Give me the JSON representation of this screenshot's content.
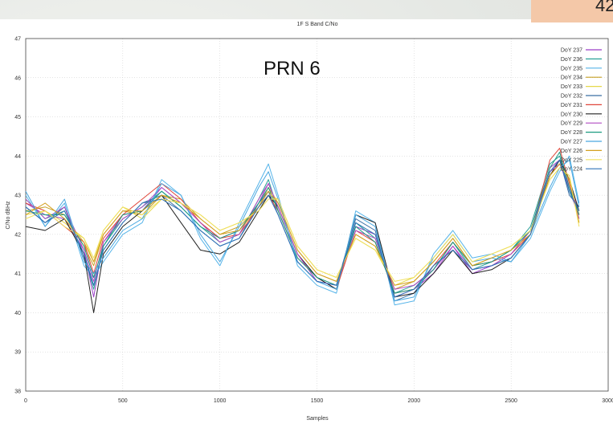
{
  "slide": {
    "badge_text": "42"
  },
  "annotation": {
    "text": "PRN 6"
  },
  "chart_data": {
    "type": "line",
    "title": "1F S Band C/No",
    "xlabel": "Samples",
    "ylabel": "C/No dBHz",
    "xlim": [
      0,
      3000
    ],
    "ylim": [
      38,
      47
    ],
    "xticks": [
      "0",
      "500",
      "1000",
      "1500",
      "2000",
      "2500",
      "3000"
    ],
    "yticks": [
      "38",
      "39",
      "40",
      "41",
      "42",
      "43",
      "44",
      "45",
      "46",
      "47"
    ],
    "grid": true,
    "legend_position": "top-right",
    "x": [
      0,
      100,
      200,
      300,
      350,
      400,
      500,
      600,
      700,
      800,
      900,
      1000,
      1100,
      1200,
      1250,
      1300,
      1400,
      1500,
      1600,
      1700,
      1800,
      1900,
      2000,
      2100,
      2200,
      2300,
      2400,
      2500,
      2600,
      2700,
      2750,
      2800,
      2850
    ],
    "series": [
      {
        "name": "DoY 237",
        "color": "#9b3fc8",
        "values": [
          42.8,
          42.5,
          42.4,
          41.6,
          40.4,
          41.8,
          42.5,
          42.6,
          43.2,
          42.8,
          42.3,
          41.9,
          42.1,
          42.8,
          43.3,
          42.7,
          41.5,
          40.8,
          40.7,
          42.2,
          42.0,
          40.4,
          40.6,
          41.0,
          41.7,
          41.0,
          41.2,
          41.5,
          42.1,
          43.7,
          43.9,
          43.2,
          42.6
        ]
      },
      {
        "name": "DoY 236",
        "color": "#2aa198",
        "values": [
          42.9,
          42.4,
          42.6,
          41.5,
          40.6,
          41.7,
          42.4,
          42.7,
          43.1,
          42.7,
          42.2,
          41.8,
          42.0,
          42.9,
          43.4,
          42.6,
          41.4,
          40.9,
          40.6,
          42.3,
          41.9,
          40.5,
          40.7,
          41.1,
          41.8,
          41.1,
          41.3,
          41.6,
          42.2,
          43.8,
          44.0,
          43.1,
          42.5
        ]
      },
      {
        "name": "DoY 235",
        "color": "#56b4e9",
        "values": [
          43.0,
          42.2,
          42.8,
          41.2,
          40.9,
          41.3,
          42.0,
          42.3,
          43.4,
          43.0,
          41.9,
          41.2,
          42.3,
          43.3,
          43.8,
          43.0,
          41.2,
          40.7,
          40.5,
          42.6,
          42.3,
          40.2,
          40.3,
          41.5,
          42.1,
          41.4,
          41.5,
          41.3,
          41.9,
          43.1,
          43.6,
          44.0,
          42.8
        ]
      },
      {
        "name": "DoY 234",
        "color": "#c9a227",
        "values": [
          42.6,
          42.7,
          42.5,
          41.7,
          41.2,
          42.0,
          42.6,
          42.5,
          43.0,
          42.9,
          42.4,
          42.0,
          42.2,
          42.7,
          43.2,
          42.8,
          41.6,
          41.0,
          40.8,
          42.0,
          41.7,
          40.6,
          40.8,
          41.3,
          41.9,
          41.2,
          41.4,
          41.6,
          42.0,
          43.5,
          43.8,
          43.4,
          42.4
        ]
      },
      {
        "name": "DoY 233",
        "color": "#e6d84a",
        "values": [
          42.5,
          42.6,
          42.3,
          41.9,
          41.3,
          42.1,
          42.7,
          42.4,
          42.9,
          42.8,
          42.5,
          42.1,
          42.3,
          42.6,
          43.0,
          42.9,
          41.7,
          41.1,
          40.9,
          41.9,
          41.6,
          40.7,
          40.9,
          41.4,
          42.0,
          41.3,
          41.5,
          41.7,
          42.1,
          43.4,
          43.7,
          43.5,
          42.3
        ]
      },
      {
        "name": "DoY 232",
        "color": "#3b6fa5",
        "values": [
          42.7,
          42.3,
          42.7,
          41.4,
          40.7,
          41.6,
          42.3,
          42.8,
          43.0,
          42.6,
          42.1,
          41.7,
          41.9,
          42.8,
          43.1,
          42.5,
          41.3,
          40.8,
          40.7,
          42.4,
          42.1,
          40.3,
          40.5,
          41.2,
          41.6,
          41.1,
          41.2,
          41.4,
          42.0,
          43.6,
          43.9,
          43.0,
          42.7
        ]
      },
      {
        "name": "DoY 231",
        "color": "#e0453a",
        "values": [
          42.8,
          42.6,
          42.2,
          41.8,
          41.0,
          41.9,
          42.5,
          42.9,
          43.3,
          42.9,
          42.3,
          41.9,
          42.0,
          42.7,
          43.0,
          42.6,
          41.4,
          40.9,
          40.6,
          42.1,
          41.8,
          40.5,
          40.6,
          41.2,
          41.8,
          41.2,
          41.3,
          41.5,
          42.0,
          43.9,
          44.2,
          43.3,
          42.5
        ]
      },
      {
        "name": "DoY 230",
        "color": "#222222",
        "values": [
          42.2,
          42.1,
          42.4,
          41.5,
          40.0,
          41.5,
          42.2,
          42.6,
          43.0,
          42.3,
          41.6,
          41.5,
          41.8,
          42.6,
          43.0,
          42.7,
          41.5,
          40.9,
          40.6,
          42.5,
          42.3,
          40.4,
          40.5,
          41.0,
          41.6,
          41.0,
          41.1,
          41.4,
          42.0,
          43.5,
          43.9,
          43.4,
          42.6
        ]
      },
      {
        "name": "DoY 229",
        "color": "#b04cc2",
        "values": [
          42.9,
          42.4,
          42.7,
          41.6,
          40.8,
          41.8,
          42.4,
          42.7,
          43.2,
          42.8,
          42.3,
          41.8,
          42.0,
          42.9,
          43.3,
          42.7,
          41.5,
          40.8,
          40.7,
          42.1,
          41.9,
          40.6,
          40.7,
          41.1,
          41.7,
          41.1,
          41.2,
          41.5,
          42.1,
          43.6,
          43.8,
          43.2,
          42.4
        ]
      },
      {
        "name": "DoY 228",
        "color": "#1a9a80",
        "values": [
          42.6,
          42.5,
          42.5,
          41.7,
          40.9,
          41.7,
          42.5,
          42.6,
          43.1,
          42.7,
          42.2,
          41.9,
          42.1,
          42.8,
          43.2,
          42.6,
          41.4,
          40.9,
          40.7,
          42.2,
          41.8,
          40.5,
          40.6,
          41.1,
          41.8,
          41.2,
          41.3,
          41.6,
          42.1,
          43.7,
          44.1,
          43.2,
          42.5
        ]
      },
      {
        "name": "DoY 227",
        "color": "#4aa8e0",
        "values": [
          43.1,
          42.2,
          42.9,
          41.3,
          41.0,
          41.4,
          42.1,
          42.4,
          43.3,
          43.0,
          42.0,
          41.3,
          42.2,
          43.2,
          43.6,
          42.9,
          41.3,
          40.8,
          40.6,
          42.5,
          42.2,
          40.3,
          40.4,
          41.4,
          42.0,
          41.3,
          41.4,
          41.3,
          42.0,
          43.2,
          43.7,
          43.9,
          42.7
        ]
      },
      {
        "name": "DoY 226",
        "color": "#d4a020",
        "values": [
          42.5,
          42.8,
          42.4,
          41.8,
          41.3,
          42.0,
          42.6,
          42.6,
          43.0,
          42.8,
          42.4,
          42.0,
          42.1,
          42.7,
          43.1,
          42.8,
          41.6,
          41.0,
          40.8,
          42.0,
          41.7,
          40.7,
          40.8,
          41.3,
          41.9,
          41.2,
          41.4,
          41.6,
          42.0,
          43.5,
          43.8,
          43.4,
          42.3
        ]
      },
      {
        "name": "DoY 225",
        "color": "#f0e060",
        "values": [
          42.4,
          42.6,
          42.2,
          41.9,
          41.4,
          42.1,
          42.7,
          42.5,
          42.9,
          42.8,
          42.5,
          42.1,
          42.3,
          42.6,
          42.9,
          42.9,
          41.7,
          41.1,
          40.9,
          41.9,
          41.6,
          40.8,
          40.9,
          41.4,
          42.0,
          41.3,
          41.5,
          41.7,
          42.1,
          43.4,
          43.7,
          43.5,
          42.2
        ]
      },
      {
        "name": "DoY 224",
        "color": "#2f73b8",
        "values": [
          42.7,
          42.3,
          42.6,
          41.5,
          40.7,
          41.6,
          42.3,
          42.8,
          42.9,
          42.6,
          42.1,
          41.7,
          41.9,
          42.7,
          43.0,
          42.5,
          41.3,
          40.8,
          40.7,
          42.3,
          42.0,
          40.4,
          40.6,
          41.2,
          41.6,
          41.1,
          41.2,
          41.4,
          42.0,
          43.6,
          43.9,
          43.1,
          42.6
        ]
      }
    ]
  }
}
